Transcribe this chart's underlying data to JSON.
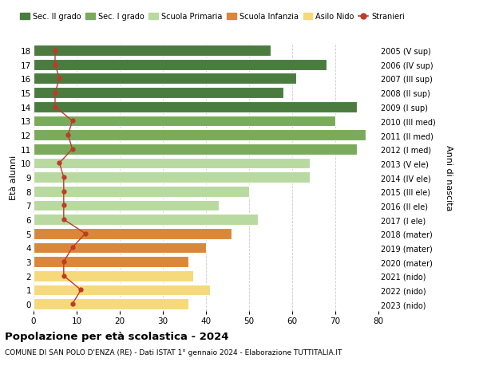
{
  "ages": [
    18,
    17,
    16,
    15,
    14,
    13,
    12,
    11,
    10,
    9,
    8,
    7,
    6,
    5,
    4,
    3,
    2,
    1,
    0
  ],
  "bar_values": [
    55,
    68,
    61,
    58,
    75,
    70,
    77,
    75,
    64,
    64,
    50,
    43,
    52,
    46,
    40,
    36,
    37,
    41,
    36
  ],
  "bar_colors": [
    "#4a7c3f",
    "#4a7c3f",
    "#4a7c3f",
    "#4a7c3f",
    "#4a7c3f",
    "#7aab5a",
    "#7aab5a",
    "#7aab5a",
    "#b8d9a0",
    "#b8d9a0",
    "#b8d9a0",
    "#b8d9a0",
    "#b8d9a0",
    "#d9873a",
    "#d9873a",
    "#d9873a",
    "#f5d97a",
    "#f5d97a",
    "#f5d97a"
  ],
  "stranieri_values": [
    5,
    5,
    6,
    5,
    5,
    9,
    8,
    9,
    6,
    7,
    7,
    7,
    7,
    12,
    9,
    7,
    7,
    11,
    9
  ],
  "right_labels": [
    "2005 (V sup)",
    "2006 (IV sup)",
    "2007 (III sup)",
    "2008 (II sup)",
    "2009 (I sup)",
    "2010 (III med)",
    "2011 (II med)",
    "2012 (I med)",
    "2013 (V ele)",
    "2014 (IV ele)",
    "2015 (III ele)",
    "2016 (II ele)",
    "2017 (I ele)",
    "2018 (mater)",
    "2019 (mater)",
    "2020 (mater)",
    "2021 (nido)",
    "2022 (nido)",
    "2023 (nido)"
  ],
  "legend_labels": [
    "Sec. II grado",
    "Sec. I grado",
    "Scuola Primaria",
    "Scuola Infanzia",
    "Asilo Nido",
    "Stranieri"
  ],
  "legend_colors": [
    "#4a7c3f",
    "#7aab5a",
    "#b8d9a0",
    "#d9873a",
    "#f5d97a",
    "#c0392b"
  ],
  "ylabel_left": "Età alunni",
  "ylabel_right": "Anni di nascita",
  "title": "Popolazione per età scolastica - 2024",
  "subtitle": "COMUNE DI SAN POLO D'ENZA (RE) - Dati ISTAT 1° gennaio 2024 - Elaborazione TUTTITALIA.IT",
  "xlim": [
    0,
    80
  ],
  "xticks": [
    0,
    10,
    20,
    30,
    40,
    50,
    60,
    70,
    80
  ],
  "bg_color": "#ffffff",
  "stranieri_color": "#c0392b",
  "grid_color": "#cccccc"
}
